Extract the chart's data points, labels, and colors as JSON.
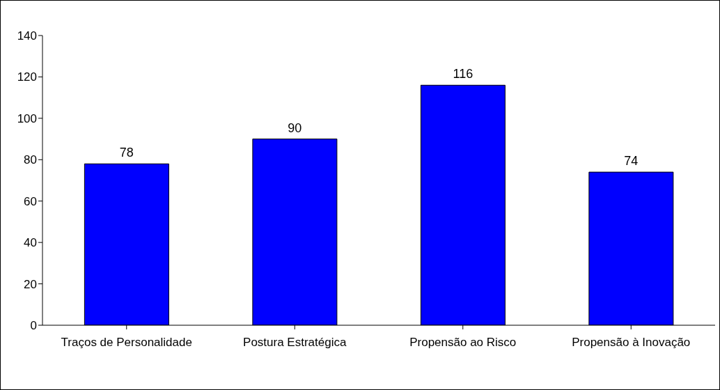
{
  "chart_data": {
    "type": "bar",
    "categories": [
      "Traços de Personalidade",
      "Postura Estratégica",
      "Propensão ao Risco",
      "Propensão à Inovação"
    ],
    "values": [
      78,
      90,
      116,
      74
    ],
    "color": "#0000ff",
    "ylim": [
      0,
      140
    ],
    "yticks": [
      0,
      20,
      40,
      60,
      80,
      100,
      120,
      140
    ],
    "grid": false,
    "legend": false,
    "data_labels": true
  }
}
